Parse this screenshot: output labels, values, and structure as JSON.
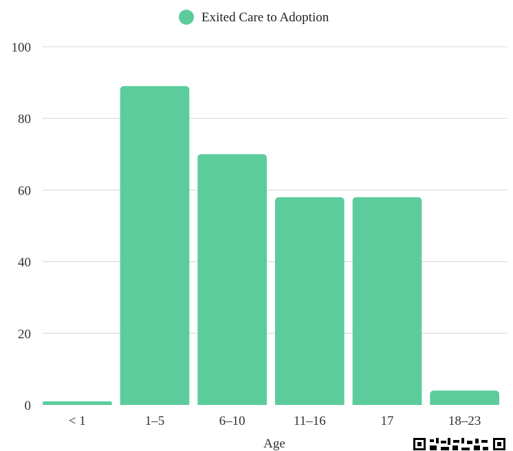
{
  "chart_data": {
    "type": "bar",
    "title": "",
    "xlabel": "Age",
    "ylabel": "",
    "categories": [
      "< 1",
      "1–5",
      "6–10",
      "11–16",
      "17",
      "18–23"
    ],
    "series": [
      {
        "name": "Exited Care to Adoption",
        "values": [
          1,
          89,
          70,
          58,
          58,
          4
        ],
        "color": "#5ccc9c"
      }
    ],
    "ylim": [
      0,
      100
    ],
    "yticks": [
      0,
      20,
      40,
      60,
      80,
      100
    ],
    "grid": true,
    "legend_position": "top-center"
  },
  "qr_icon": "qr-code-icon"
}
